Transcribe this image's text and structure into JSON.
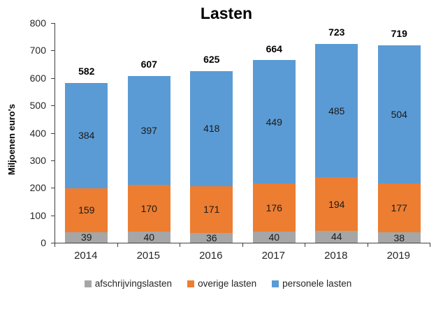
{
  "title": "Lasten",
  "y_axis": {
    "label": "Miljoenen euro's",
    "ticks": [
      0,
      100,
      200,
      300,
      400,
      500,
      600,
      700,
      800
    ]
  },
  "chart_data": {
    "type": "bar",
    "stacked": true,
    "title": "Lasten",
    "ylabel": "Miljoenen euro's",
    "xlabel": "",
    "ylim": [
      0,
      800
    ],
    "grid": false,
    "legend_position": "bottom",
    "categories": [
      "2014",
      "2015",
      "2016",
      "2017",
      "2018",
      "2019"
    ],
    "series": [
      {
        "name": "afschrijvingslasten",
        "color": "#A6A6A6",
        "values": [
          39,
          40,
          36,
          40,
          44,
          38
        ]
      },
      {
        "name": "overige lasten",
        "color": "#ED7D31",
        "values": [
          159,
          170,
          171,
          176,
          194,
          177
        ]
      },
      {
        "name": "personele lasten",
        "color": "#5B9BD5",
        "values": [
          384,
          397,
          418,
          449,
          485,
          504
        ]
      }
    ],
    "totals": [
      582,
      607,
      625,
      664,
      723,
      719
    ]
  }
}
